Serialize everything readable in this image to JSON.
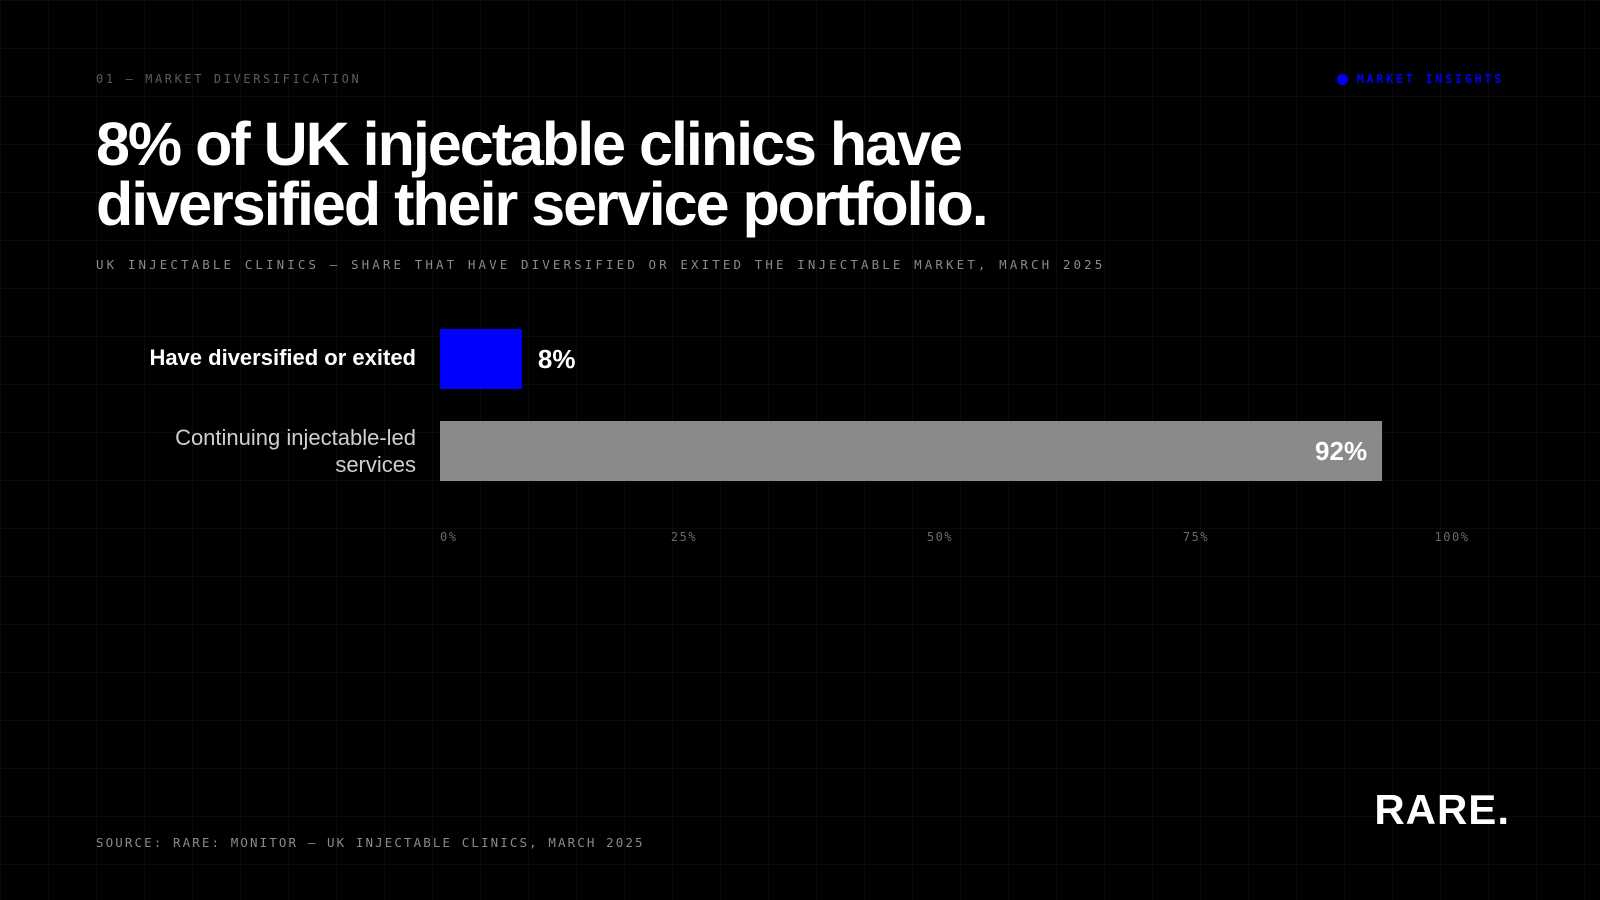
{
  "header": {
    "kicker": "01 — MARKET DIVERSIFICATION",
    "tag": "MARKET INSIGHTS"
  },
  "headline": "8% of UK injectable clinics have diversified their service portfolio.",
  "subtitle": "UK INJECTABLE CLINICS — SHARE THAT HAVE DIVERSIFIED OR EXITED THE INJECTABLE MARKET, MARCH 2025",
  "chart_data": {
    "type": "bar",
    "orientation": "horizontal",
    "categories": [
      "Have diversified or exited",
      "Continuing injectable-led services"
    ],
    "values": [
      8,
      92
    ],
    "value_labels": [
      "8%",
      "92%"
    ],
    "colors": [
      "#0000ff",
      "#8a8a8a"
    ],
    "xlim": [
      0,
      100
    ],
    "ticks": [
      0,
      25,
      50,
      75,
      100
    ],
    "tick_labels": [
      "0%",
      "25%",
      "50%",
      "75%",
      "100%"
    ],
    "grid": true
  },
  "footer": {
    "source": "SOURCE: RARE: MONITOR — UK INJECTABLE CLINICS, MARCH 2025",
    "logo": "RARE."
  },
  "colors": {
    "accent": "#0000ff",
    "background": "#000000",
    "muted_bar": "#8a8a8a"
  }
}
